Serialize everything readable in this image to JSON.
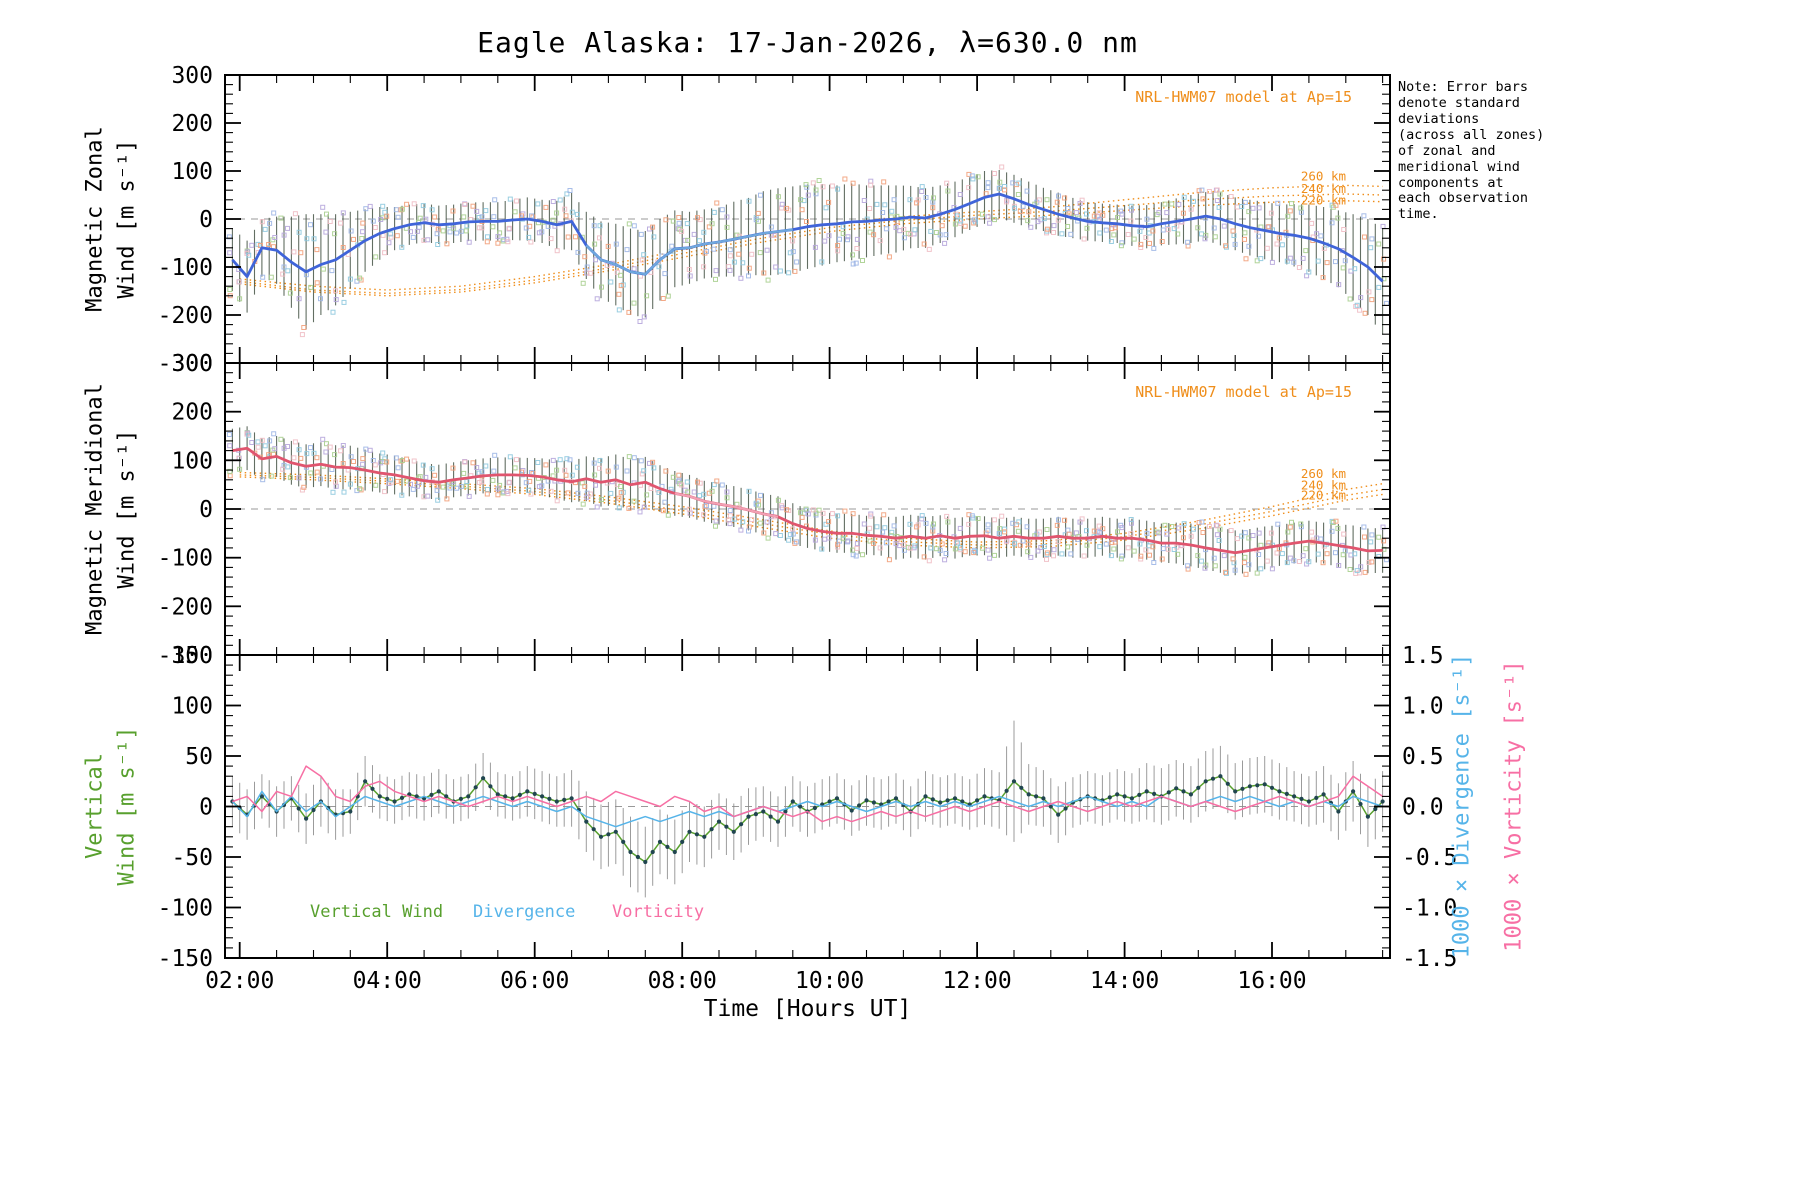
{
  "title": "Eagle Alaska: 17-Jan-2026, λ=630.0 nm",
  "xlabel": "Time [Hours UT]",
  "note": "Note: Error bars\ndenote standard\ndeviations\n(across all zones)\nof zonal and\nmeridional wind\ncomponents at\neach observation\ntime.",
  "model_annotation": "NRL-HWM07 model at Ap=15",
  "legend": {
    "vertical_wind": "Vertical Wind",
    "divergence": "Divergence",
    "vorticity": "Vorticity"
  },
  "colors": {
    "zonal_line": "#3f64d9",
    "zonal_overlay": "#6fa8dc",
    "meridional_line": "#e0556e",
    "meridional_overlay": "#f2a0b4",
    "vertical_wind": "#58a02e",
    "vertical_marker": "#20454f",
    "divergence": "#56b4e9",
    "vorticity": "#f76fa4",
    "model": "#ef8e1b",
    "error_bar": "#3b4a3b",
    "gray_bar": "#8a8a8a"
  },
  "chart_data": {
    "type": "line",
    "x_range": [
      1.8,
      17.6
    ],
    "x_major_ticks": [
      2,
      4,
      6,
      8,
      10,
      12,
      14,
      16
    ],
    "x_tick_labels": [
      "02:00",
      "04:00",
      "06:00",
      "08:00",
      "10:00",
      "12:00",
      "14:00",
      "16:00"
    ],
    "x_minor_step": 0.5,
    "model_color": "#ef8e1b",
    "scatter_palette": [
      "#f2a07a",
      "#9db6e6",
      "#a9cf8e",
      "#b6a6dc",
      "#f0bcc4",
      "#8ec9de"
    ],
    "x": [
      1.9,
      2.1,
      2.3,
      2.5,
      2.7,
      2.9,
      3.1,
      3.3,
      3.5,
      3.7,
      3.9,
      4.1,
      4.3,
      4.5,
      4.7,
      4.9,
      5.1,
      5.3,
      5.5,
      5.7,
      5.9,
      6.1,
      6.3,
      6.5,
      6.7,
      6.9,
      7.1,
      7.3,
      7.5,
      7.7,
      7.9,
      8.1,
      8.3,
      8.5,
      8.7,
      8.9,
      9.1,
      9.3,
      9.5,
      9.7,
      9.9,
      10.1,
      10.3,
      10.5,
      10.7,
      10.9,
      11.1,
      11.3,
      11.5,
      11.7,
      11.9,
      12.1,
      12.3,
      12.5,
      12.7,
      12.9,
      13.1,
      13.3,
      13.5,
      13.7,
      13.9,
      14.1,
      14.3,
      14.5,
      14.7,
      14.9,
      15.1,
      15.3,
      15.5,
      15.7,
      15.9,
      16.1,
      16.3,
      16.5,
      16.7,
      16.9,
      17.1,
      17.3,
      17.5
    ],
    "panels": [
      {
        "name": "magnetic-zonal-wind",
        "ylabel_lines": [
          "Magnetic Zonal",
          "Wind [m s⁻¹]"
        ],
        "y_range": [
          -300,
          300
        ],
        "y_tick_values": [
          -300,
          -200,
          -100,
          0,
          100,
          200,
          300
        ],
        "y_tick_labels": [
          "-300",
          "-200",
          "-100",
          "0",
          "100",
          "200",
          "300"
        ],
        "y_minor_step": 20,
        "annotation": "NRL-HWM07 model at Ap=15",
        "mean": {
          "color": "#3f64d9",
          "bar_color": "#3b4a3b",
          "overlay": {
            "from": 6.6,
            "to": 9.5,
            "color": "#6fa8dc"
          },
          "values": [
            -85,
            -120,
            -60,
            -65,
            -90,
            -110,
            -95,
            -85,
            -65,
            -45,
            -30,
            -20,
            -12,
            -8,
            -12,
            -10,
            -6,
            -5,
            -5,
            -2,
            0,
            -5,
            -12,
            -5,
            -55,
            -85,
            -95,
            -110,
            -115,
            -85,
            -62,
            -60,
            -52,
            -48,
            -42,
            -36,
            -30,
            -26,
            -22,
            -16,
            -12,
            -10,
            -6,
            -5,
            -2,
            0,
            4,
            2,
            10,
            20,
            32,
            45,
            52,
            42,
            30,
            20,
            10,
            2,
            -5,
            -8,
            -10,
            -14,
            -16,
            -10,
            -5,
            0,
            6,
            0,
            -10,
            -18,
            -24,
            -30,
            -34,
            -40,
            -50,
            -62,
            -80,
            -100,
            -130
          ],
          "err": [
            65,
            75,
            60,
            70,
            95,
            120,
            105,
            95,
            80,
            65,
            55,
            45,
            42,
            40,
            40,
            40,
            40,
            40,
            40,
            42,
            45,
            45,
            50,
            60,
            70,
            80,
            85,
            90,
            90,
            85,
            80,
            75,
            72,
            72,
            78,
            80,
            88,
            90,
            90,
            88,
            85,
            80,
            80,
            75,
            72,
            70,
            65,
            62,
            60,
            58,
            55,
            55,
            50,
            50,
            48,
            45,
            45,
            42,
            40,
            40,
            40,
            42,
            45,
            45,
            48,
            50,
            50,
            55,
            55,
            58,
            60,
            60,
            65,
            70,
            75,
            80,
            90,
            100,
            110
          ]
        },
        "models": {
          "labels": [
            "260 km",
            "240 km",
            "220 km"
          ],
          "label_y": [
            80,
            54,
            30
          ],
          "x": [
            2,
            3,
            4,
            5,
            6,
            7,
            8,
            9,
            10,
            11,
            12,
            13,
            14,
            15,
            16,
            17,
            17.5
          ],
          "series": [
            [
              -125,
              -140,
              -148,
              -140,
              -120,
              -95,
              -65,
              -35,
              -10,
              5,
              15,
              25,
              40,
              55,
              65,
              70,
              68
            ],
            [
              -130,
              -148,
              -155,
              -147,
              -127,
              -102,
              -72,
              -42,
              -18,
              -3,
              8,
              16,
              28,
              40,
              48,
              52,
              50
            ],
            [
              -135,
              -152,
              -160,
              -152,
              -133,
              -108,
              -80,
              -50,
              -26,
              -10,
              0,
              8,
              18,
              28,
              35,
              38,
              36
            ]
          ]
        }
      },
      {
        "name": "magnetic-meridional-wind",
        "ylabel_lines": [
          "Magnetic Meridional",
          "Wind [m s⁻¹]"
        ],
        "y_range": [
          -300,
          300
        ],
        "y_tick_values": [
          -300,
          -200,
          -100,
          0,
          100,
          200,
          300
        ],
        "y_tick_labels": [
          "-300",
          "-200",
          "-100",
          "0",
          "100",
          "200",
          "300"
        ],
        "y_minor_step": 20,
        "annotation": "NRL-HWM07 model at Ap=15",
        "mean": {
          "color": "#e0556e",
          "bar_color": "#3b4a3b",
          "overlay": {
            "from": 7.8,
            "to": 9.4,
            "color": "#f2a0b4"
          },
          "values": [
            120,
            125,
            103,
            108,
            95,
            88,
            92,
            86,
            85,
            80,
            74,
            70,
            64,
            58,
            55,
            60,
            64,
            68,
            70,
            70,
            69,
            66,
            60,
            56,
            62,
            55,
            60,
            50,
            55,
            42,
            32,
            26,
            16,
            10,
            5,
            -2,
            -10,
            -16,
            -30,
            -40,
            -46,
            -50,
            -50,
            -54,
            -56,
            -60,
            -56,
            -60,
            -55,
            -60,
            -56,
            -55,
            -60,
            -56,
            -60,
            -60,
            -56,
            -60,
            -60,
            -56,
            -60,
            -60,
            -64,
            -70,
            -70,
            -74,
            -80,
            -85,
            -90,
            -85,
            -80,
            -75,
            -70,
            -66,
            -70,
            -75,
            -80,
            -86,
            -85
          ],
          "err": [
            45,
            45,
            42,
            42,
            45,
            45,
            45,
            45,
            45,
            42,
            40,
            40,
            38,
            36,
            36,
            36,
            36,
            36,
            36,
            36,
            36,
            38,
            40,
            42,
            46,
            50,
            52,
            52,
            52,
            48,
            46,
            44,
            42,
            42,
            42,
            42,
            42,
            42,
            42,
            40,
            40,
            40,
            40,
            40,
            40,
            44,
            44,
            44,
            42,
            42,
            40,
            40,
            40,
            40,
            40,
            40,
            40,
            40,
            40,
            40,
            40,
            40,
            40,
            40,
            42,
            44,
            44,
            46,
            46,
            44,
            44,
            42,
            42,
            42,
            42,
            44,
            46,
            46,
            46
          ]
        },
        "models": {
          "labels": [
            "260 km",
            "240 km",
            "220 km"
          ],
          "label_y": [
            64,
            40,
            20
          ],
          "x": [
            2,
            3,
            4,
            5,
            6,
            7,
            8,
            9,
            10,
            11,
            12,
            13,
            14,
            15,
            16,
            17,
            17.5
          ],
          "series": [
            [
              75,
              70,
              62,
              52,
              42,
              25,
              5,
              -20,
              -45,
              -60,
              -68,
              -65,
              -50,
              -25,
              5,
              40,
              52
            ],
            [
              70,
              65,
              57,
              47,
              36,
              18,
              -3,
              -28,
              -52,
              -67,
              -74,
              -71,
              -57,
              -33,
              -5,
              28,
              40
            ],
            [
              66,
              60,
              52,
              42,
              30,
              12,
              -10,
              -36,
              -60,
              -74,
              -80,
              -77,
              -64,
              -41,
              -14,
              18,
              30
            ]
          ]
        }
      },
      {
        "name": "vertical-wind-divergence-vorticity",
        "ylabel_lines": [
          "Vertical",
          "Wind [m s⁻¹]"
        ],
        "y_range": [
          -150,
          150
        ],
        "y_tick_values": [
          -150,
          -100,
          -50,
          0,
          50,
          100,
          150
        ],
        "y_tick_labels": [
          "-150",
          "-100",
          "-50",
          "0",
          "50",
          "100",
          "150"
        ],
        "y_minor_step": 10,
        "right_axis": {
          "titles": [
            "1000 × Divergence [s⁻¹]",
            "1000 × Vorticity [s⁻¹]"
          ],
          "tick_values": [
            -1.5,
            -1.0,
            -0.5,
            0.0,
            0.5,
            1.0,
            1.5
          ],
          "tick_labels": [
            "-1.5",
            "-1.0",
            "-0.5",
            "0.0",
            "0.5",
            "1.0",
            "1.5"
          ],
          "scale": 100
        },
        "series": [
          {
            "name": "Vertical Wind",
            "color": "#58a02e",
            "marker_color": "#20454f",
            "bar_color": "#8a8a8a",
            "scale": 1,
            "values": [
              5,
              -8,
              10,
              -5,
              8,
              -12,
              5,
              -8,
              -5,
              25,
              10,
              5,
              12,
              8,
              15,
              5,
              10,
              28,
              12,
              8,
              15,
              10,
              5,
              8,
              -15,
              -30,
              -25,
              -45,
              -55,
              -35,
              -45,
              -25,
              -30,
              -15,
              -25,
              -10,
              -5,
              -15,
              5,
              -5,
              2,
              8,
              -4,
              6,
              2,
              8,
              -5,
              10,
              4,
              8,
              2,
              10,
              6,
              25,
              12,
              8,
              -8,
              4,
              10,
              6,
              12,
              8,
              15,
              10,
              18,
              12,
              25,
              30,
              15,
              20,
              22,
              15,
              10,
              5,
              12,
              -5,
              15,
              -10,
              5
            ],
            "err": [
              25,
              25,
              22,
              25,
              22,
              25,
              25,
              25,
              22,
              25,
              22,
              22,
              22,
              22,
              22,
              22,
              22,
              25,
              22,
              22,
              25,
              25,
              25,
              28,
              30,
              32,
              32,
              35,
              35,
              32,
              32,
              30,
              30,
              28,
              28,
              28,
              25,
              25,
              25,
              25,
              25,
              25,
              25,
              25,
              25,
              25,
              25,
              25,
              25,
              25,
              25,
              28,
              28,
              60,
              30,
              28,
              28,
              25,
              25,
              25,
              25,
              25,
              28,
              28,
              28,
              28,
              30,
              30,
              28,
              28,
              28,
              28,
              25,
              25,
              28,
              28,
              30,
              30,
              30
            ]
          },
          {
            "name": "Divergence",
            "color": "#56b4e9",
            "scale": 100,
            "values": [
              0.05,
              -0.1,
              0.15,
              -0.05,
              0.1,
              -0.05,
              0.05,
              -0.1,
              0.0,
              0.1,
              0.05,
              0.0,
              0.05,
              0.1,
              0.05,
              0.0,
              0.05,
              0.1,
              0.05,
              0.0,
              0.05,
              0.0,
              -0.05,
              0.0,
              -0.1,
              -0.15,
              -0.2,
              -0.15,
              -0.1,
              -0.15,
              -0.1,
              -0.05,
              -0.1,
              -0.05,
              -0.1,
              -0.05,
              0.0,
              -0.05,
              0.0,
              0.05,
              0.0,
              0.05,
              0.0,
              -0.05,
              0.0,
              0.05,
              0.0,
              0.05,
              0.0,
              0.05,
              0.0,
              0.05,
              0.1,
              0.05,
              0.0,
              0.05,
              0.0,
              0.05,
              0.1,
              0.05,
              0.0,
              0.05,
              0.0,
              0.1,
              0.05,
              0.0,
              0.05,
              0.1,
              0.05,
              0.1,
              0.05,
              0.0,
              0.05,
              0.0,
              0.05,
              0.0,
              0.1,
              0.05,
              0.0
            ]
          },
          {
            "name": "Vorticity",
            "color": "#f76fa4",
            "scale": 100,
            "values": [
              0.05,
              0.1,
              -0.05,
              0.15,
              0.1,
              0.4,
              0.3,
              0.1,
              0.05,
              0.2,
              0.25,
              0.15,
              0.1,
              0.05,
              0.1,
              0.05,
              0.0,
              0.05,
              0.1,
              0.05,
              0.1,
              0.05,
              0.0,
              0.05,
              0.1,
              0.05,
              0.15,
              0.1,
              0.05,
              0.0,
              0.1,
              0.05,
              -0.05,
              0.0,
              -0.1,
              -0.05,
              0.0,
              -0.05,
              -0.1,
              -0.05,
              -0.15,
              -0.1,
              -0.15,
              -0.1,
              -0.05,
              -0.1,
              -0.05,
              -0.1,
              -0.05,
              0.0,
              -0.05,
              0.0,
              0.05,
              0.0,
              -0.05,
              0.0,
              0.05,
              0.0,
              -0.05,
              0.0,
              0.05,
              0.0,
              0.05,
              0.1,
              0.05,
              0.0,
              0.05,
              0.0,
              -0.05,
              0.0,
              0.05,
              0.1,
              0.05,
              0.0,
              0.05,
              0.1,
              0.3,
              0.2,
              0.1
            ]
          }
        ]
      }
    ]
  }
}
